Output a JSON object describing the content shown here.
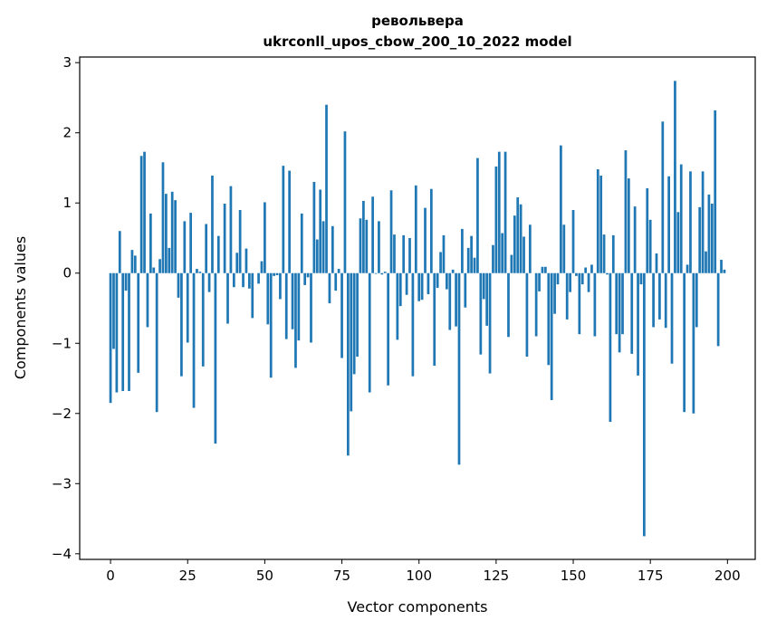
{
  "chart_data": {
    "type": "bar",
    "title": "револьвера",
    "subtitle": "ukrconll_upos_cbow_200_10_2022 model",
    "xlabel": "Vector components",
    "ylabel": "Components values",
    "xlim": [
      -10,
      209
    ],
    "ylim": [
      -4.08,
      3.08
    ],
    "xticks": [
      0,
      25,
      50,
      75,
      100,
      125,
      150,
      175,
      200
    ],
    "yticks": [
      -4,
      -3,
      -2,
      -1,
      0,
      1,
      2,
      3
    ],
    "ytick_labels": [
      "−4",
      "−3",
      "−2",
      "−1",
      "0",
      "1",
      "2",
      "3"
    ],
    "grid": false,
    "bar_color": "#1f77b4",
    "series": [
      {
        "values": [
          -1.85,
          -1.08,
          -1.7,
          0.6,
          -1.68,
          -0.25,
          -1.68,
          0.33,
          0.25,
          -1.42,
          1.67,
          1.73,
          -0.77,
          0.85,
          0.08,
          -1.98,
          0.2,
          1.58,
          1.13,
          0.36,
          1.16,
          1.04,
          -0.35,
          -1.47,
          0.74,
          -0.99,
          0.86,
          -1.92,
          0.06,
          0.02,
          -1.33,
          0.7,
          -0.27,
          1.39,
          -2.43,
          0.53,
          0.0,
          0.99,
          -0.72,
          1.24,
          -0.2,
          0.29,
          0.9,
          -0.2,
          0.35,
          -0.22,
          -0.64,
          0.0,
          -0.15,
          0.17,
          1.01,
          -0.73,
          -1.49,
          -0.04,
          -0.03,
          -0.37,
          1.53,
          -0.94,
          1.46,
          -0.8,
          -1.35,
          -0.96,
          0.85,
          -0.17,
          -0.06,
          -0.99,
          1.3,
          0.48,
          1.19,
          0.74,
          2.4,
          -0.43,
          0.67,
          -0.25,
          0.06,
          -1.21,
          2.02,
          -2.6,
          -1.97,
          -1.44,
          -1.19,
          0.78,
          1.03,
          0.76,
          -1.7,
          1.09,
          -0.01,
          0.74,
          -0.02,
          0.02,
          -1.6,
          1.18,
          0.55,
          -0.95,
          -0.47,
          0.54,
          -0.31,
          0.5,
          -1.47,
          1.25,
          -0.4,
          -0.38,
          0.93,
          -0.3,
          1.2,
          -1.32,
          -0.21,
          0.3,
          0.54,
          -0.23,
          -0.81,
          0.05,
          -0.76,
          -2.73,
          0.63,
          -0.49,
          0.36,
          0.53,
          0.22,
          1.64,
          -1.16,
          -0.37,
          -0.75,
          -1.43,
          0.4,
          1.52,
          1.73,
          0.57,
          1.73,
          -0.91,
          0.26,
          0.82,
          1.08,
          0.98,
          0.52,
          -1.19,
          0.69,
          0.0,
          -0.9,
          -0.26,
          0.09,
          0.09,
          -1.31,
          -1.81,
          -0.58,
          -0.16,
          1.82,
          0.69,
          -0.66,
          -0.27,
          0.9,
          -0.04,
          -0.87,
          -0.16,
          0.08,
          -0.27,
          0.12,
          -0.9,
          1.48,
          1.39,
          0.55,
          -0.02,
          -2.12,
          0.54,
          -0.87,
          -1.13,
          -0.87,
          1.75,
          1.35,
          -1.15,
          0.95,
          -1.46,
          -0.16,
          -3.75,
          1.21,
          0.76,
          -0.77,
          0.28,
          -0.66,
          2.16,
          -0.78,
          1.38,
          -1.29,
          2.74,
          0.87,
          1.55,
          -1.98,
          0.12,
          1.45,
          -2.0,
          -0.77,
          0.94,
          1.45,
          0.31,
          1.12,
          0.99,
          2.32,
          -1.04,
          0.19,
          0.05
        ]
      }
    ]
  }
}
